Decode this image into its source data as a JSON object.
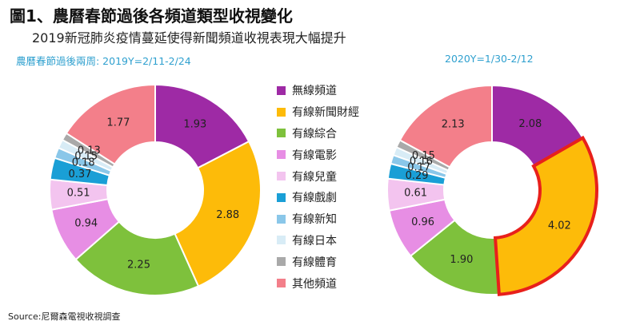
{
  "header": {
    "title": "圖1、農曆春節過後各頻道類型收視變化",
    "subtitle": "2019新冠肺炎疫情蔓延使得新聞頻道收視表現大幅提升",
    "left_period": "農曆春節過後兩周:  2019Y=2/11-2/24",
    "right_period": "2020Y=1/30-2/12"
  },
  "source": "Source:尼爾森電視收視調查",
  "chart_data": [
    {
      "type": "pie",
      "subtype": "donut",
      "period": "2019Y=2/11-2/24",
      "categories": [
        "無線頻道",
        "有線新聞財經",
        "有線綜合",
        "有線電影",
        "有線兒童",
        "有線戲劇",
        "有線新知",
        "有線日本",
        "有線體育",
        "其他頻道"
      ],
      "values": [
        1.93,
        2.88,
        2.25,
        0.94,
        0.51,
        0.37,
        0.18,
        0.15,
        0.13,
        1.77
      ],
      "colors": [
        "#9e2aa5",
        "#fdbb09",
        "#7ec13c",
        "#e78ee4",
        "#f3c4ef",
        "#1a9fd6",
        "#8ac7e9",
        "#d8ecf6",
        "#a9a9a9",
        "#f37f8a"
      ]
    },
    {
      "type": "pie",
      "subtype": "donut",
      "period": "2020Y=1/30-2/12",
      "categories": [
        "無線頻道",
        "有線新聞財經",
        "有線綜合",
        "有線電影",
        "有線兒童",
        "有線戲劇",
        "有線新知",
        "有線日本",
        "有線體育",
        "其他頻道"
      ],
      "values": [
        2.08,
        4.02,
        1.9,
        0.96,
        0.61,
        0.29,
        0.17,
        0.16,
        0.15,
        2.13
      ],
      "colors": [
        "#9e2aa5",
        "#fdbb09",
        "#7ec13c",
        "#e78ee4",
        "#f3c4ef",
        "#1a9fd6",
        "#8ac7e9",
        "#d8ecf6",
        "#a9a9a9",
        "#f37f8a"
      ],
      "highlighted_category": "有線新聞財經",
      "highlight_color": "#e8201b"
    }
  ],
  "legend": [
    {
      "label": "無線頻道",
      "color": "#9e2aa5"
    },
    {
      "label": "有線新聞財經",
      "color": "#fdbb09"
    },
    {
      "label": "有線綜合",
      "color": "#7ec13c"
    },
    {
      "label": "有線電影",
      "color": "#e78ee4"
    },
    {
      "label": "有線兒童",
      "color": "#f3c4ef"
    },
    {
      "label": "有線戲劇",
      "color": "#1a9fd6"
    },
    {
      "label": "有線新知",
      "color": "#8ac7e9"
    },
    {
      "label": "有線日本",
      "color": "#d8ecf6"
    },
    {
      "label": "有線體育",
      "color": "#a9a9a9"
    },
    {
      "label": "其他頻道",
      "color": "#f37f8a"
    }
  ]
}
